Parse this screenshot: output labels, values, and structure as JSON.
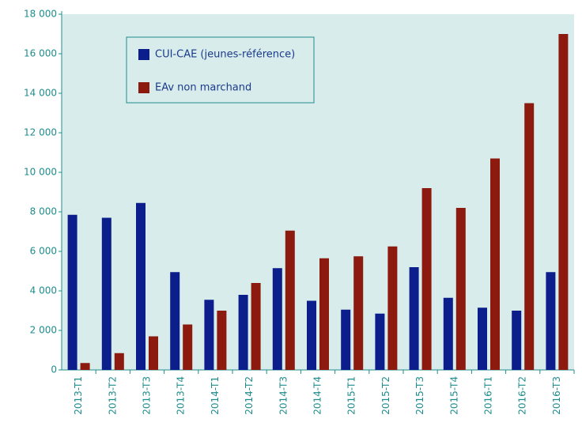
{
  "chart_data": {
    "type": "bar",
    "categories": [
      "2013-T1",
      "2013-T2",
      "2013-T3",
      "2013-T4",
      "2014-T1",
      "2014-T2",
      "2014-T3",
      "2014-T4",
      "2015-T1",
      "2015-T2",
      "2015-T3",
      "2015-T4",
      "2016-T1",
      "2016-T2",
      "2016-T3"
    ],
    "series": [
      {
        "name": "CUI-CAE (jeunes-référence)",
        "color": "#0b1e8c",
        "values": [
          7850,
          7700,
          8450,
          4950,
          3550,
          3800,
          5150,
          3500,
          3050,
          2850,
          5200,
          3650,
          3150,
          3000,
          4950
        ]
      },
      {
        "name": "EAv non marchand",
        "color": "#8c1a0e",
        "values": [
          350,
          850,
          1700,
          2300,
          3000,
          4400,
          7050,
          5650,
          5750,
          6250,
          9200,
          8200,
          10700,
          13500,
          17000
        ]
      }
    ],
    "ylim": [
      0,
      18000
    ],
    "yticks": [
      0,
      {
        "value": 2000,
        "label": "2 000"
      },
      {
        "value": 4000,
        "label": "4 000"
      },
      {
        "value": 6000,
        "label": "6 000"
      },
      {
        "value": 8000,
        "label": "8 000"
      },
      {
        "value": 10000,
        "label": "10 000"
      },
      {
        "value": 12000,
        "label": "12 000"
      },
      {
        "value": 14000,
        "label": "14 000"
      },
      {
        "value": 16000,
        "label": "16 000"
      },
      {
        "value": 18000,
        "label": "18 000"
      }
    ],
    "grid": false,
    "legend": "upper left"
  }
}
